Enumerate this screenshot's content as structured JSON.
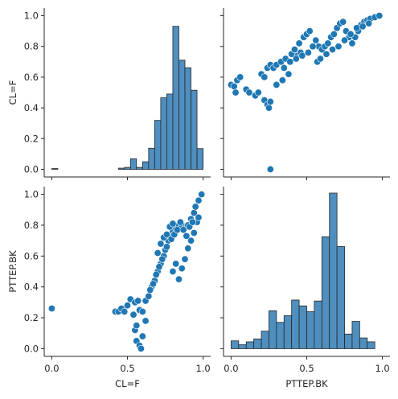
{
  "chart_data": {
    "type": "pairplot",
    "variables": [
      "CL=F",
      "PTTEP.BK"
    ],
    "color": "#1f77b4",
    "hist_color": "#4f8fbf",
    "axis_range": [
      0,
      1
    ],
    "ticks": [
      0.0,
      0.2,
      0.4,
      0.6,
      0.8,
      1.0
    ],
    "tick_labels": [
      "0.0",
      "0.2",
      "0.4",
      "0.6",
      "0.8",
      "1.0"
    ],
    "x_ticks": [
      0.0,
      0.5,
      1.0
    ],
    "x_tick_labels": [
      "0.0",
      "0.5",
      "1.0"
    ],
    "panels": {
      "hist_cl": {
        "xmin": 0.0,
        "xmax": 1.0,
        "edges": [
          0.0,
          0.04,
          0.08,
          0.12,
          0.16,
          0.2,
          0.24,
          0.28,
          0.32,
          0.36,
          0.4,
          0.44,
          0.48,
          0.52,
          0.56,
          0.6,
          0.64,
          0.68,
          0.72,
          0.76,
          0.8,
          0.84,
          0.88,
          0.92,
          0.96,
          1.0
        ],
        "counts": [
          2,
          0,
          0,
          0,
          0,
          0,
          0,
          0,
          0,
          0,
          0,
          3,
          5,
          28,
          5,
          20,
          56,
          130,
          190,
          200,
          380,
          290,
          270,
          210,
          55
        ],
        "max_count": 420
      },
      "hist_ptt": {
        "xmin": 0.0,
        "xmax": 1.0,
        "edges": [
          0.0,
          0.05,
          0.1,
          0.15,
          0.2,
          0.25,
          0.3,
          0.35,
          0.4,
          0.45,
          0.5,
          0.55,
          0.6,
          0.65,
          0.7,
          0.75,
          0.8,
          0.85,
          0.9,
          0.95,
          1.0
        ],
        "counts": [
          8,
          4,
          7,
          10,
          18,
          39,
          27,
          34,
          50,
          44,
          38,
          49,
          115,
          160,
          105,
          15,
          28,
          11,
          7,
          0
        ],
        "max_count": 160
      },
      "scatter_cl_ptt": {
        "x_var": "CL=F",
        "y_var": "PTTEP.BK",
        "points": [
          [
            0.0,
            0.26
          ],
          [
            0.42,
            0.24
          ],
          [
            0.44,
            0.24
          ],
          [
            0.46,
            0.26
          ],
          [
            0.48,
            0.24
          ],
          [
            0.5,
            0.28
          ],
          [
            0.52,
            0.32
          ],
          [
            0.54,
            0.22
          ],
          [
            0.55,
            0.3
          ],
          [
            0.57,
            0.31
          ],
          [
            0.58,
            0.25
          ],
          [
            0.6,
            0.24
          ],
          [
            0.62,
            0.31
          ],
          [
            0.64,
            0.34
          ],
          [
            0.66,
            0.4
          ],
          [
            0.68,
            0.44
          ],
          [
            0.7,
            0.5
          ],
          [
            0.72,
            0.55
          ],
          [
            0.74,
            0.6
          ],
          [
            0.75,
            0.64
          ],
          [
            0.77,
            0.7
          ],
          [
            0.78,
            0.73
          ],
          [
            0.8,
            0.76
          ],
          [
            0.82,
            0.78
          ],
          [
            0.84,
            0.8
          ],
          [
            0.86,
            0.8
          ],
          [
            0.88,
            0.78
          ],
          [
            0.9,
            0.8
          ],
          [
            0.92,
            0.84
          ],
          [
            0.94,
            0.88
          ],
          [
            0.95,
            0.92
          ],
          [
            0.97,
            0.96
          ],
          [
            0.99,
            1.0
          ],
          [
            0.55,
            0.12
          ],
          [
            0.56,
            0.05
          ],
          [
            0.58,
            0.02
          ],
          [
            0.59,
            0.0
          ],
          [
            0.6,
            0.08
          ],
          [
            0.56,
            0.15
          ],
          [
            0.62,
            0.18
          ],
          [
            0.8,
            0.5
          ],
          [
            0.82,
            0.55
          ],
          [
            0.84,
            0.45
          ],
          [
            0.86,
            0.52
          ],
          [
            0.88,
            0.58
          ],
          [
            0.9,
            0.65
          ],
          [
            0.92,
            0.7
          ],
          [
            0.94,
            0.75
          ],
          [
            0.96,
            0.82
          ],
          [
            0.97,
            0.85
          ],
          [
            0.7,
            0.62
          ],
          [
            0.72,
            0.68
          ],
          [
            0.74,
            0.72
          ],
          [
            0.76,
            0.74
          ],
          [
            0.78,
            0.79
          ],
          [
            0.8,
            0.81
          ],
          [
            0.65,
            0.38
          ],
          [
            0.67,
            0.42
          ],
          [
            0.69,
            0.48
          ],
          [
            0.71,
            0.53
          ],
          [
            0.73,
            0.58
          ],
          [
            0.76,
            0.66
          ],
          [
            0.79,
            0.71
          ],
          [
            0.81,
            0.74
          ],
          [
            0.83,
            0.77
          ],
          [
            0.85,
            0.82
          ],
          [
            0.87,
            0.77
          ],
          [
            0.89,
            0.73
          ],
          [
            0.91,
            0.79
          ],
          [
            0.93,
            0.82
          ]
        ]
      },
      "scatter_ptt_cl": {
        "x_var": "PTTEP.BK",
        "y_var": "CL=F",
        "points": [
          [
            0.26,
            0.0
          ],
          [
            0.0,
            0.55
          ],
          [
            0.02,
            0.54
          ],
          [
            0.04,
            0.58
          ],
          [
            0.06,
            0.6
          ],
          [
            0.03,
            0.5
          ],
          [
            0.1,
            0.52
          ],
          [
            0.12,
            0.5
          ],
          [
            0.16,
            0.48
          ],
          [
            0.18,
            0.5
          ],
          [
            0.2,
            0.62
          ],
          [
            0.22,
            0.6
          ],
          [
            0.24,
            0.66
          ],
          [
            0.26,
            0.68
          ],
          [
            0.28,
            0.66
          ],
          [
            0.3,
            0.68
          ],
          [
            0.33,
            0.7
          ],
          [
            0.36,
            0.72
          ],
          [
            0.22,
            0.45
          ],
          [
            0.24,
            0.42
          ],
          [
            0.25,
            0.4
          ],
          [
            0.26,
            0.44
          ],
          [
            0.3,
            0.55
          ],
          [
            0.34,
            0.58
          ],
          [
            0.38,
            0.62
          ],
          [
            0.4,
            0.75
          ],
          [
            0.45,
            0.82
          ],
          [
            0.48,
            0.86
          ],
          [
            0.5,
            0.88
          ],
          [
            0.52,
            0.9
          ],
          [
            0.56,
            0.84
          ],
          [
            0.58,
            0.8
          ],
          [
            0.6,
            0.78
          ],
          [
            0.62,
            0.8
          ],
          [
            0.64,
            0.82
          ],
          [
            0.66,
            0.86
          ],
          [
            0.68,
            0.88
          ],
          [
            0.7,
            0.92
          ],
          [
            0.72,
            0.95
          ],
          [
            0.74,
            0.96
          ],
          [
            0.76,
            0.9
          ],
          [
            0.78,
            0.86
          ],
          [
            0.8,
            0.82
          ],
          [
            0.82,
            0.86
          ],
          [
            0.84,
            0.9
          ],
          [
            0.86,
            0.94
          ],
          [
            0.88,
            0.96
          ],
          [
            0.9,
            0.97
          ],
          [
            0.92,
            0.98
          ],
          [
            0.95,
            0.99
          ],
          [
            0.98,
            1.0
          ],
          [
            0.42,
            0.78
          ],
          [
            0.44,
            0.74
          ],
          [
            0.46,
            0.76
          ],
          [
            0.54,
            0.8
          ],
          [
            0.57,
            0.7
          ],
          [
            0.59,
            0.72
          ],
          [
            0.63,
            0.75
          ],
          [
            0.67,
            0.78
          ],
          [
            0.71,
            0.8
          ],
          [
            0.75,
            0.84
          ],
          [
            0.79,
            0.88
          ],
          [
            0.83,
            0.92
          ],
          [
            0.87,
            0.93
          ],
          [
            0.91,
            0.95
          ],
          [
            0.35,
            0.66
          ],
          [
            0.39,
            0.7
          ],
          [
            0.43,
            0.72
          ],
          [
            0.47,
            0.74
          ],
          [
            0.51,
            0.76
          ]
        ]
      }
    }
  }
}
